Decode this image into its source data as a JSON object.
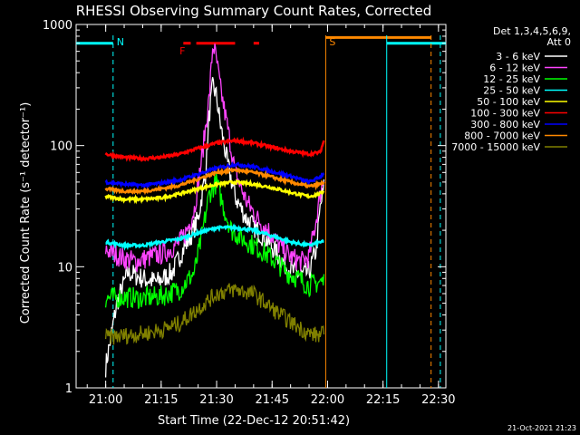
{
  "chart_data": {
    "type": "line",
    "title": "RHESSI Observing Summary Count Rates, Corrected",
    "xlabel": "Start Time (22-Dec-12 20:51:42)",
    "ylabel": "Corrected Count Rate (s⁻¹ detector⁻¹)",
    "y_scale": "log",
    "ylim": [
      1,
      1000
    ],
    "xlim_minutes_after_21_00": [
      -8,
      92
    ],
    "x_ticks": [
      {
        "label": "21:00",
        "minute": 0
      },
      {
        "label": "21:15",
        "minute": 15
      },
      {
        "label": "21:30",
        "minute": 30
      },
      {
        "label": "21:45",
        "minute": 45
      },
      {
        "label": "22:00",
        "minute": 60
      },
      {
        "label": "22:15",
        "minute": 75
      },
      {
        "label": "22:30",
        "minute": 90
      }
    ],
    "y_ticks": [
      {
        "label": "1",
        "value": 1
      },
      {
        "label": "10",
        "value": 10
      },
      {
        "label": "100",
        "value": 100
      },
      {
        "label": "1000",
        "value": 1000
      }
    ],
    "legend_header": [
      "Det 1,3,4,5,6,9,",
      "Att 0"
    ],
    "legend_position": "top-right",
    "series": [
      {
        "name": "3 - 6 keV",
        "color": "#ffffff",
        "x": [
          0,
          3,
          6,
          10,
          14,
          18,
          21,
          23,
          25,
          27,
          28,
          29,
          30,
          31,
          33,
          35,
          38,
          41,
          44,
          47,
          49,
          51,
          53,
          55,
          57,
          58,
          59
        ],
        "y": [
          1.5,
          5,
          9,
          8,
          7.5,
          9,
          14,
          18,
          25,
          60,
          180,
          320,
          250,
          150,
          70,
          38,
          25,
          20,
          16,
          12,
          10,
          9,
          8.5,
          9,
          14,
          30,
          45
        ]
      },
      {
        "name": "6 - 12 keV",
        "color": "#ff44ff",
        "x": [
          0,
          4,
          8,
          12,
          16,
          20,
          22,
          24,
          26,
          28,
          29,
          30,
          31,
          33,
          35,
          38,
          41,
          44,
          47,
          50,
          53,
          55,
          57,
          58,
          59
        ],
        "y": [
          14,
          12,
          11,
          12,
          13,
          16,
          20,
          30,
          80,
          250,
          700,
          500,
          300,
          140,
          60,
          35,
          25,
          20,
          15,
          12,
          11,
          12,
          25,
          40,
          55
        ]
      },
      {
        "name": "12 - 25 keV",
        "color": "#00ff00",
        "x": [
          0,
          5,
          10,
          15,
          20,
          24,
          26,
          28,
          30,
          32,
          34,
          37,
          40,
          43,
          46,
          49,
          52,
          55,
          58,
          59
        ],
        "y": [
          5.5,
          5.6,
          5.5,
          5.7,
          6.5,
          9,
          18,
          40,
          50,
          30,
          20,
          17,
          15,
          13,
          11,
          9,
          8,
          7,
          7.5,
          7.5
        ]
      },
      {
        "name": "25 - 50 keV",
        "color": "#00ffff",
        "x": [
          0,
          5,
          10,
          15,
          20,
          25,
          30,
          35,
          40,
          45,
          50,
          55,
          58,
          59
        ],
        "y": [
          16,
          15,
          15,
          16,
          17,
          19,
          21,
          21,
          20,
          18,
          16,
          15,
          16,
          16
        ]
      },
      {
        "name": "50 - 100 keV",
        "color": "#ffff00",
        "x": [
          0,
          5,
          10,
          15,
          20,
          25,
          30,
          35,
          40,
          45,
          50,
          55,
          58,
          59
        ],
        "y": [
          38,
          36,
          36,
          37,
          40,
          44,
          48,
          50,
          48,
          45,
          41,
          38,
          40,
          42
        ]
      },
      {
        "name": "100 - 300 keV",
        "color": "#ff0000",
        "x": [
          0,
          5,
          10,
          15,
          20,
          25,
          30,
          35,
          40,
          45,
          50,
          55,
          58,
          59
        ],
        "y": [
          85,
          80,
          78,
          80,
          85,
          95,
          105,
          110,
          105,
          97,
          90,
          85,
          88,
          110
        ]
      },
      {
        "name": "300 - 800 keV",
        "color": "#0000ff",
        "x": [
          0,
          5,
          10,
          15,
          20,
          25,
          30,
          35,
          40,
          45,
          50,
          55,
          58,
          59
        ],
        "y": [
          50,
          48,
          47,
          49,
          52,
          58,
          65,
          70,
          67,
          61,
          56,
          50,
          55,
          60
        ]
      },
      {
        "name": "800 - 7000 keV",
        "color": "#ff8800",
        "x": [
          0,
          5,
          10,
          15,
          20,
          25,
          30,
          35,
          40,
          45,
          50,
          55,
          58,
          59
        ],
        "y": [
          44,
          42,
          42,
          44,
          47,
          53,
          60,
          63,
          60,
          55,
          50,
          46,
          48,
          50
        ]
      },
      {
        "name": "7000 - 15000 keV",
        "color": "#808000",
        "x": [
          0,
          5,
          10,
          15,
          20,
          25,
          30,
          35,
          40,
          45,
          50,
          55,
          58,
          59
        ],
        "y": [
          2.6,
          2.7,
          2.8,
          3.0,
          3.4,
          4.5,
          6,
          6.5,
          6,
          4.5,
          3.5,
          2.8,
          2.7,
          2.8
        ]
      }
    ],
    "annotations": [
      {
        "label": "N",
        "color": "#00ffff",
        "minute": 2
      },
      {
        "label": "S",
        "color": "#ff8800",
        "minute": 59.5
      },
      {
        "label": "F",
        "color": "#ff0000",
        "minute": 19
      }
    ],
    "spans": [
      {
        "name": "night",
        "color": "#00ffff",
        "from": -8,
        "to": 2,
        "value": 700
      },
      {
        "name": "night",
        "color": "#00ffff",
        "from": 76,
        "to": 92,
        "value": 700
      },
      {
        "name": "saa",
        "color": "#ff8800",
        "from": 59.5,
        "to": 88,
        "value": 780
      },
      {
        "name": "flare",
        "color": "#ff0000",
        "from": 21,
        "to": 23,
        "value": 700
      },
      {
        "name": "flare",
        "color": "#ff0000",
        "from": 24.5,
        "to": 35,
        "value": 700
      },
      {
        "name": "flare",
        "color": "#ff0000",
        "from": 40,
        "to": 41.5,
        "value": 700
      }
    ],
    "footer_date": "21-Oct-2021 21:23"
  }
}
